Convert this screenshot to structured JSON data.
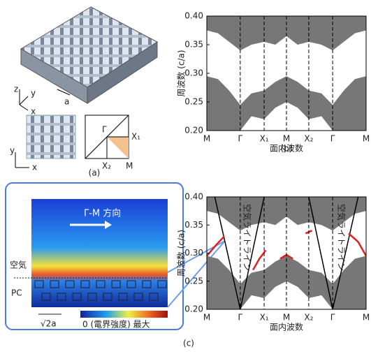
{
  "panel_a": {
    "label": "(a)",
    "axes_3d": [
      "z",
      "y",
      "x"
    ],
    "period": "a",
    "axes_2d": [
      "y",
      "x"
    ],
    "bz_points": [
      "Γ",
      "X₁",
      "X₂",
      "M"
    ]
  },
  "field_map": {
    "direction": "Γ-M 方向",
    "air": "空気",
    "pc": "PC",
    "scale": "√2a",
    "colorbar": "0 (電界強度) 最大"
  },
  "chart_data": [
    {
      "type": "band",
      "panel_label": "(b)",
      "xlabel": "面内波数",
      "ylabel": "周波数 (c/a)",
      "xlim": [
        0,
        1
      ],
      "ylim": [
        0.2,
        0.4
      ],
      "xticks": [
        {
          "value": 0,
          "label": "M"
        },
        {
          "value": 0.21,
          "label": "Γ"
        },
        {
          "value": 0.36,
          "label": "X₁"
        },
        {
          "value": 0.5,
          "label": "M"
        },
        {
          "value": 0.64,
          "label": "X₂"
        },
        {
          "value": 0.79,
          "label": "Γ"
        },
        {
          "value": 1,
          "label": "M"
        }
      ],
      "yticks": [
        {
          "value": 0.2,
          "label": "0.20"
        },
        0.25,
        {
          "value": 0.3,
          "label": "0.30"
        },
        0.35,
        {
          "value": 0.4,
          "label": "0.40"
        }
      ],
      "x": [
        0,
        0.07,
        0.14,
        0.21,
        0.28,
        0.36,
        0.43,
        0.5,
        0.57,
        0.64,
        0.72,
        0.79,
        0.86,
        0.93,
        1
      ],
      "series": [
        {
          "color": "#777777",
          "values": [
            0.295,
            0.29,
            0.27,
            0.245,
            0.265,
            0.27,
            0.285,
            0.295,
            0.285,
            0.27,
            0.265,
            0.245,
            0.27,
            0.29,
            0.295
          ],
          "base": [
            0.2,
            0.2,
            0.2,
            0.2,
            0.225,
            0.22,
            0.24,
            0.25,
            0.24,
            0.22,
            0.225,
            0.2,
            0.2,
            0.2,
            0.2
          ]
        },
        {
          "color": "#777777",
          "values": [
            0.4,
            0.4,
            0.4,
            0.4,
            0.4,
            0.4,
            0.4,
            0.4,
            0.4,
            0.4,
            0.4,
            0.4,
            0.4,
            0.4,
            0.4
          ],
          "base": [
            0.375,
            0.37,
            0.355,
            0.34,
            0.35,
            0.355,
            0.35,
            0.365,
            0.35,
            0.355,
            0.35,
            0.34,
            0.355,
            0.37,
            0.375
          ]
        }
      ]
    },
    {
      "type": "band",
      "panel_label": "(c)",
      "xlabel": "面内波数",
      "ylabel": "周波数 (c/a)",
      "annotations": [
        "空気ライトライン",
        "空気ライトライン"
      ],
      "xlim": [
        0,
        1
      ],
      "ylim": [
        0.2,
        0.4
      ],
      "xticks": [
        {
          "value": 0,
          "label": "M"
        },
        {
          "value": 0.21,
          "label": "Γ"
        },
        {
          "value": 0.36,
          "label": "X₁"
        },
        {
          "value": 0.5,
          "label": "M"
        },
        {
          "value": 0.64,
          "label": "X₂"
        },
        {
          "value": 0.79,
          "label": "Γ"
        },
        {
          "value": 1,
          "label": "M"
        }
      ],
      "yticks": [
        {
          "value": 0.2,
          "label": "0.20"
        },
        0.25,
        {
          "value": 0.3,
          "label": "0.30"
        },
        0.35,
        {
          "value": 0.4,
          "label": "0.40"
        }
      ],
      "x": [
        0,
        0.07,
        0.14,
        0.21,
        0.28,
        0.36,
        0.43,
        0.5,
        0.57,
        0.64,
        0.72,
        0.79,
        0.86,
        0.93,
        1
      ],
      "series": [
        {
          "color": "#777777",
          "values": [
            0.295,
            0.29,
            0.27,
            0.245,
            0.265,
            0.27,
            0.285,
            0.295,
            0.285,
            0.27,
            0.265,
            0.245,
            0.27,
            0.29,
            0.295
          ],
          "base": [
            0.2,
            0.2,
            0.2,
            0.2,
            0.225,
            0.22,
            0.24,
            0.25,
            0.24,
            0.22,
            0.225,
            0.2,
            0.2,
            0.2,
            0.2
          ]
        },
        {
          "color": "#777777",
          "values": [
            0.4,
            0.4,
            0.4,
            0.4,
            0.4,
            0.4,
            0.4,
            0.4,
            0.4,
            0.4,
            0.4,
            0.4,
            0.4,
            0.4,
            0.4
          ],
          "base": [
            0.375,
            0.37,
            0.355,
            0.34,
            0.35,
            0.355,
            0.35,
            0.365,
            0.35,
            0.355,
            0.35,
            0.34,
            0.355,
            0.37,
            0.375
          ]
        },
        {
          "color": "#000000",
          "x": [
            0.05,
            0.21,
            0.36
          ],
          "values": [
            0.4,
            0.2,
            0.4
          ]
        },
        {
          "color": "#000000",
          "x": [
            0.64,
            0.79,
            0.95
          ],
          "values": [
            0.4,
            0.2,
            0.4
          ]
        },
        {
          "color": "#e0201b",
          "x": [
            0,
            0.06,
            0.11,
            0.2,
            0.29,
            0.33,
            0.37,
            0.42,
            0.46,
            0.5,
            0.54,
            0.58,
            0.62,
            0.66,
            0.72,
            0.89,
            0.95,
            1
          ],
          "values": [
            0.295,
            0.315,
            0.33,
            null,
            0.27,
            0.29,
            0.305,
            null,
            0.29,
            0.297,
            0.29,
            null,
            0.335,
            0.34,
            null,
            0.335,
            0.32,
            0.295
          ]
        }
      ]
    }
  ]
}
